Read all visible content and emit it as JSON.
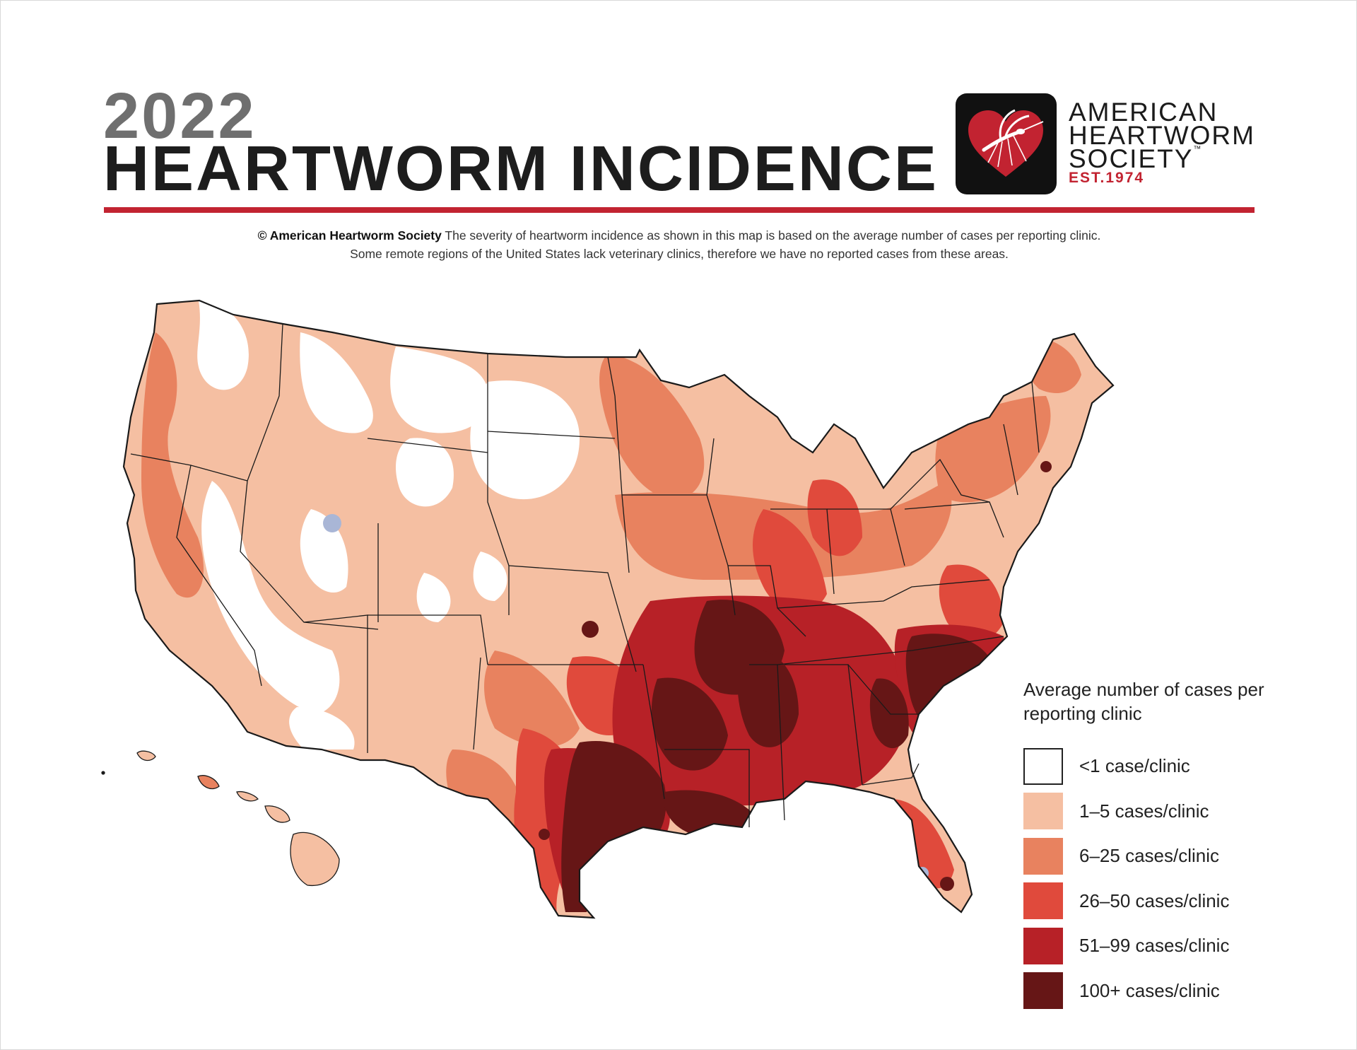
{
  "header": {
    "year": "2022",
    "title": "HEARTWORM INCIDENCE"
  },
  "logo": {
    "icon": "heart-mosquito-icon",
    "line1": "AMERICAN",
    "line2": "HEARTWORM",
    "line3": "SOCIETY",
    "trademark": "™",
    "established": "EST.1974",
    "colors": {
      "red": "#c22331",
      "black": "#111111"
    }
  },
  "caption": {
    "owner": "© American Heartworm Society",
    "line1": "The severity of heartworm incidence as shown in this map is based on the average number of cases per reporting clinic.",
    "line2": "Some remote regions of the United States lack veterinary clinics, therefore we have no reported cases from these areas."
  },
  "legend": {
    "title": "Average number of cases per reporting clinic",
    "items": [
      {
        "label": "<1 case/clinic",
        "color": "#ffffff"
      },
      {
        "label": "1–5 cases/clinic",
        "color": "#f5bfa2"
      },
      {
        "label": "6–25 cases/clinic",
        "color": "#e8825f"
      },
      {
        "label": "26–50 cases/clinic",
        "color": "#e04a3c"
      },
      {
        "label": "51–99 cases/clinic",
        "color": "#b72127"
      },
      {
        "label": "100+ cases/clinic",
        "color": "#661616"
      }
    ]
  },
  "colors": {
    "accent_rule": "#c22331",
    "no_data": "#a9b6d6",
    "state_border": "#1a1a1a"
  }
}
